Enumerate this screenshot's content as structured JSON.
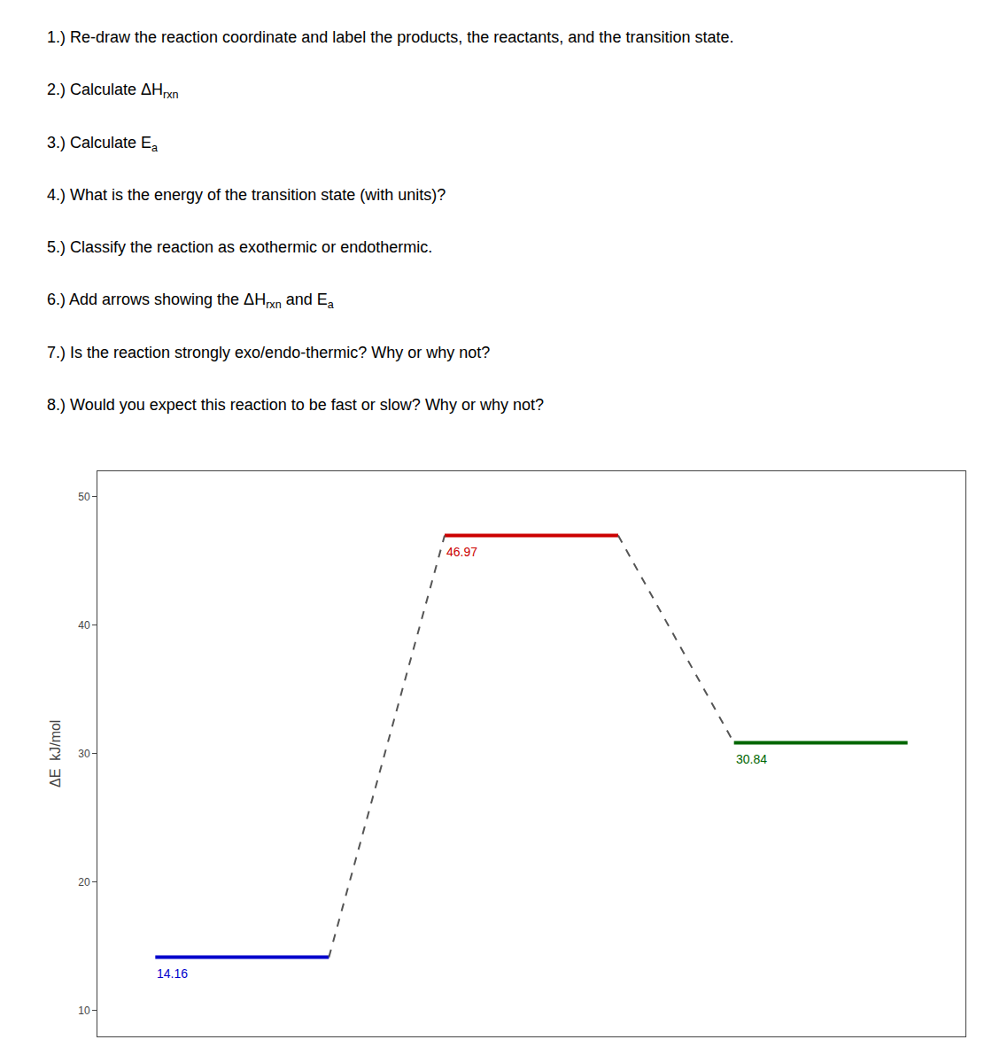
{
  "chart_data": {
    "type": "levels",
    "instructions": [
      [
        {
          "text": "1.) Re-draw the reaction coordinate and label the products, the reactants, and the transition state."
        }
      ],
      [
        {
          "text": "2.) Calculate ΔH"
        },
        {
          "subscript": "rxn"
        }
      ],
      [
        {
          "text": "3.) Calculate E"
        },
        {
          "subscript": "a"
        }
      ],
      [
        {
          "text": "4.) What is the energy of the transition state (with units)?"
        }
      ],
      [
        {
          "text": "5.) Classify the reaction as exothermic or endothermic."
        }
      ],
      [
        {
          "text": "6.) Add arrows showing the ΔH"
        },
        {
          "subscript": "rxn"
        },
        {
          "text": " and E"
        },
        {
          "subscript": "a"
        }
      ],
      [
        {
          "text": "7.) Is the reaction strongly exo/endo-thermic? Why or why not?"
        }
      ],
      [
        {
          "text": "8.) Would you expect this reaction to be fast or slow? Why or why not?"
        }
      ]
    ],
    "categories": [
      null,
      null,
      null
    ],
    "values": [
      14.16,
      46.97,
      30.84
    ],
    "colors": [
      "#0000cc",
      "#cc0000",
      "#006600"
    ],
    "color": "#555555",
    "line_style": "dashed",
    "data_labels": true,
    "ylabel": "ΔE  kJ/mol",
    "ylim": [
      8,
      52
    ],
    "yticks": [
      10,
      20,
      30,
      40,
      50
    ],
    "grid": false,
    "tick_labels": "y"
  }
}
